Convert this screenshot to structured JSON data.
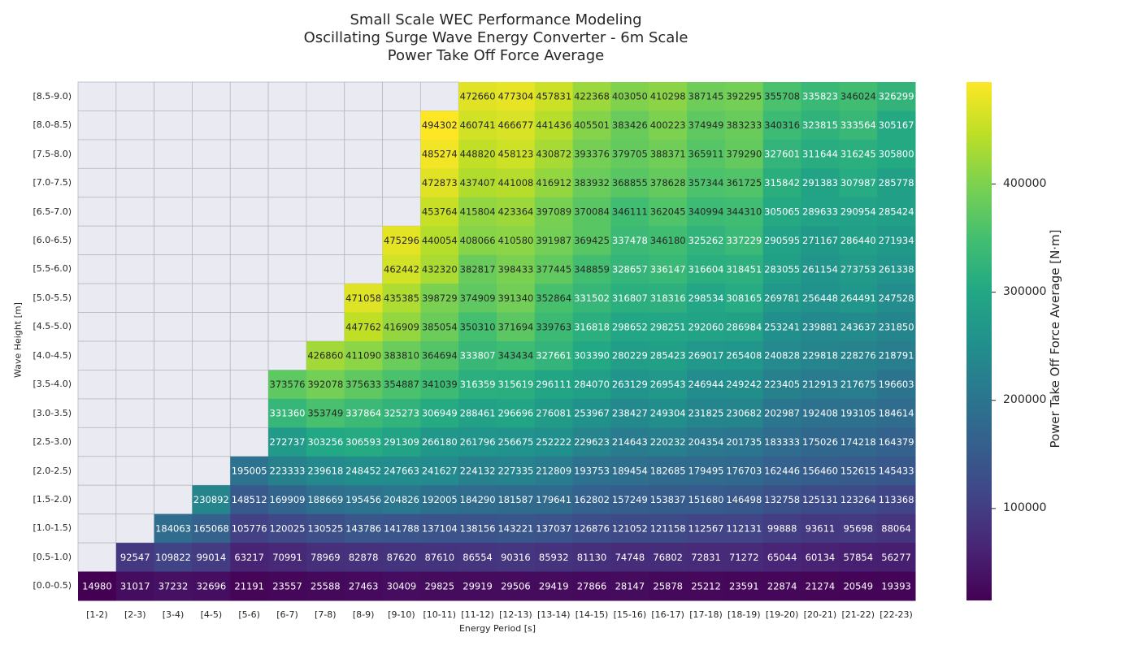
{
  "chart_data": {
    "type": "heatmap",
    "title": [
      "Small Scale WEC Performance Modeling",
      "Oscillating Surge Wave Energy Converter - 6m Scale",
      "Power Take Off Force Average"
    ],
    "xlabel": "Energy Period [s]",
    "ylabel": "Wave Height [m]",
    "colorbar_label": "Power Take Off Force Average [N·m]",
    "colorbar_ticks": [
      100000,
      200000,
      300000,
      400000
    ],
    "colorbar_tick_labels": [
      "100000",
      "200000",
      "300000",
      "400000"
    ],
    "colormap": "viridis",
    "vmin": 14980,
    "vmax": 494302,
    "missing_color": "#eaeaf2",
    "x_categories": [
      "[1-2)",
      "[2-3)",
      "[3-4)",
      "[4-5)",
      "[5-6)",
      "[6-7)",
      "[7-8)",
      "[8-9)",
      "[9-10)",
      "[10-11)",
      "[11-12)",
      "[12-13)",
      "[13-14)",
      "[14-15)",
      "[15-16)",
      "[16-17)",
      "[17-18)",
      "[18-19)",
      "[19-20)",
      "[20-21)",
      "[21-22)",
      "[22-23)"
    ],
    "y_categories": [
      "[8.5-9.0)",
      "[8.0-8.5)",
      "[7.5-8.0)",
      "[7.0-7.5)",
      "[6.5-7.0)",
      "[6.0-6.5)",
      "[5.5-6.0)",
      "[5.0-5.5)",
      "[4.5-5.0)",
      "[4.0-4.5)",
      "[3.5-4.0)",
      "[3.0-3.5)",
      "[2.5-3.0)",
      "[2.0-2.5)",
      "[1.5-2.0)",
      "[1.0-1.5)",
      "[0.5-1.0)",
      "[0.0-0.5)"
    ],
    "values": [
      [
        null,
        null,
        null,
        null,
        null,
        null,
        null,
        null,
        null,
        null,
        472660,
        477304,
        457831,
        422368,
        403050,
        410298,
        387145,
        392295,
        355708,
        335823,
        346024,
        326299
      ],
      [
        null,
        null,
        null,
        null,
        null,
        null,
        null,
        null,
        null,
        494302,
        460741,
        466677,
        441436,
        405501,
        383426,
        400223,
        374949,
        383233,
        340316,
        323815,
        333564,
        305167
      ],
      [
        null,
        null,
        null,
        null,
        null,
        null,
        null,
        null,
        null,
        485274,
        448820,
        458123,
        430872,
        393376,
        379705,
        388371,
        365911,
        379290,
        327601,
        311644,
        316245,
        305800
      ],
      [
        null,
        null,
        null,
        null,
        null,
        null,
        null,
        null,
        null,
        472873,
        437407,
        441008,
        416912,
        383932,
        368855,
        378628,
        357344,
        361725,
        315842,
        291383,
        307987,
        285778
      ],
      [
        null,
        null,
        null,
        null,
        null,
        null,
        null,
        null,
        null,
        453764,
        415804,
        423364,
        397089,
        370084,
        346111,
        362045,
        340994,
        344310,
        305065,
        289633,
        290954,
        285424
      ],
      [
        null,
        null,
        null,
        null,
        null,
        null,
        null,
        null,
        475296,
        440054,
        408066,
        410580,
        391987,
        369425,
        337478,
        346180,
        325262,
        337229,
        290595,
        271167,
        286440,
        271934
      ],
      [
        null,
        null,
        null,
        null,
        null,
        null,
        null,
        null,
        462442,
        432320,
        382817,
        398433,
        377445,
        348859,
        328657,
        336147,
        316604,
        318451,
        283055,
        261154,
        273753,
        261338
      ],
      [
        null,
        null,
        null,
        null,
        null,
        null,
        null,
        471058,
        435385,
        398729,
        374909,
        391340,
        352864,
        331502,
        316807,
        318316,
        298534,
        308165,
        269781,
        256448,
        264491,
        247528
      ],
      [
        null,
        null,
        null,
        null,
        null,
        null,
        null,
        447762,
        416909,
        385054,
        350310,
        371694,
        339763,
        316818,
        298652,
        298251,
        292060,
        286984,
        253241,
        239881,
        243637,
        231850
      ],
      [
        null,
        null,
        null,
        null,
        null,
        null,
        426860,
        411090,
        383810,
        364694,
        333807,
        343434,
        327661,
        303390,
        280229,
        285423,
        269017,
        265408,
        240828,
        229818,
        228276,
        218791
      ],
      [
        null,
        null,
        null,
        null,
        null,
        373576,
        392078,
        375633,
        354887,
        341039,
        316359,
        315619,
        296111,
        284070,
        263129,
        269543,
        246944,
        249242,
        223405,
        212913,
        217675,
        196603
      ],
      [
        null,
        null,
        null,
        null,
        null,
        331360,
        353749,
        337864,
        325273,
        306949,
        288461,
        296696,
        276081,
        253967,
        238427,
        249304,
        231825,
        230682,
        202987,
        192408,
        193105,
        184614
      ],
      [
        null,
        null,
        null,
        null,
        null,
        272737,
        303256,
        306593,
        291309,
        266180,
        261796,
        256675,
        252222,
        229623,
        214643,
        220232,
        204354,
        201735,
        183333,
        175026,
        174218,
        164379
      ],
      [
        null,
        null,
        null,
        null,
        195005,
        223333,
        239618,
        248452,
        247663,
        241627,
        224132,
        227335,
        212809,
        193753,
        189454,
        182685,
        179495,
        176703,
        162446,
        156460,
        152615,
        145433
      ],
      [
        null,
        null,
        null,
        230892,
        148512,
        169909,
        188669,
        195456,
        204826,
        192005,
        184290,
        181587,
        179641,
        162802,
        157249,
        153837,
        151680,
        146498,
        132758,
        125131,
        123264,
        113368
      ],
      [
        null,
        null,
        184063,
        165068,
        105776,
        120025,
        130525,
        143786,
        141788,
        137104,
        138156,
        143221,
        137037,
        126876,
        121052,
        121158,
        112567,
        112131,
        99888,
        93611,
        95698,
        88064
      ],
      [
        null,
        92547,
        109822,
        99014,
        63217,
        70991,
        78969,
        82878,
        87620,
        87610,
        86554,
        90316,
        85932,
        81130,
        74748,
        76802,
        72831,
        71272,
        65044,
        60134,
        57854,
        56277
      ],
      [
        14980,
        31017,
        37232,
        32696,
        21191,
        23557,
        25588,
        27463,
        30409,
        29825,
        29919,
        29506,
        29419,
        27866,
        28147,
        25878,
        25212,
        23591,
        22874,
        21274,
        20549,
        19393
      ]
    ]
  }
}
